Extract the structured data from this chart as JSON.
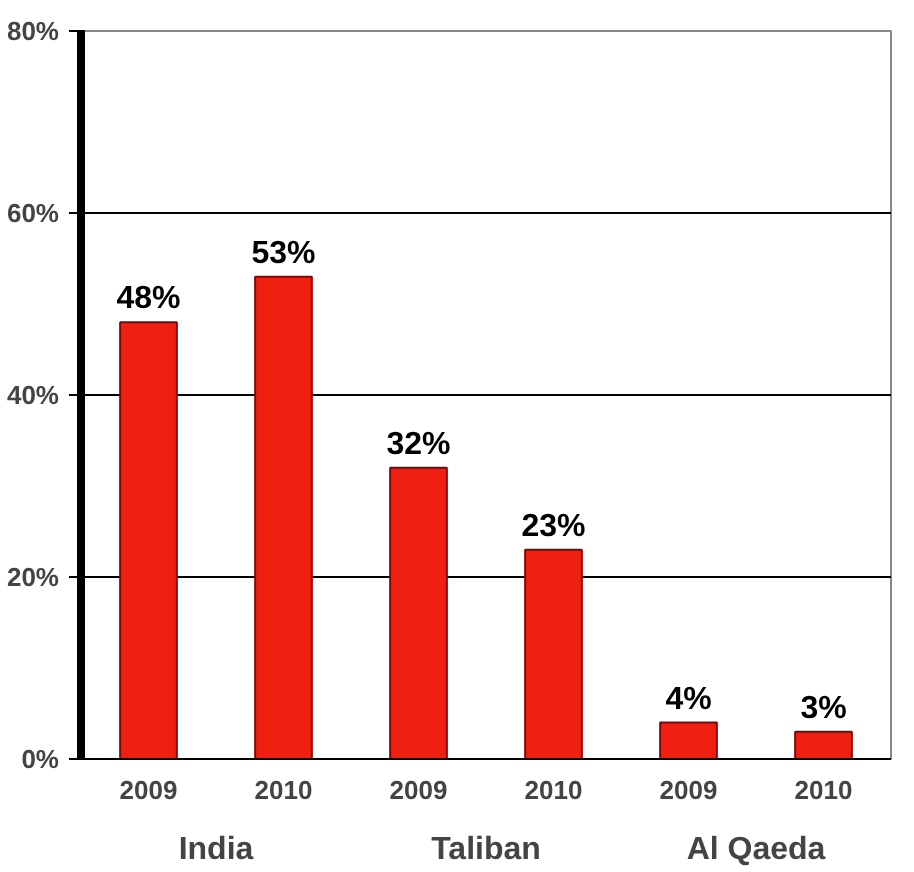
{
  "chart_data": {
    "type": "bar",
    "categories": [
      "2009",
      "2010",
      "2009",
      "2010",
      "2009",
      "2010"
    ],
    "values": [
      48,
      53,
      32,
      23,
      4,
      3
    ],
    "value_labels": [
      "48%",
      "53%",
      "32%",
      "23%",
      "4%",
      "3%"
    ],
    "color": "#f02010",
    "ylim": [
      0,
      80
    ],
    "yticks": [
      {
        "value": 0,
        "label": "0%"
      },
      {
        "value": 20,
        "label": "20%"
      },
      {
        "value": 40,
        "label": "40%"
      },
      {
        "value": 60,
        "label": "60%"
      },
      {
        "value": 80,
        "label": "80%"
      }
    ],
    "grid": "y",
    "annotations": [
      "India",
      "Taliban",
      "Al Qaeda"
    ]
  }
}
